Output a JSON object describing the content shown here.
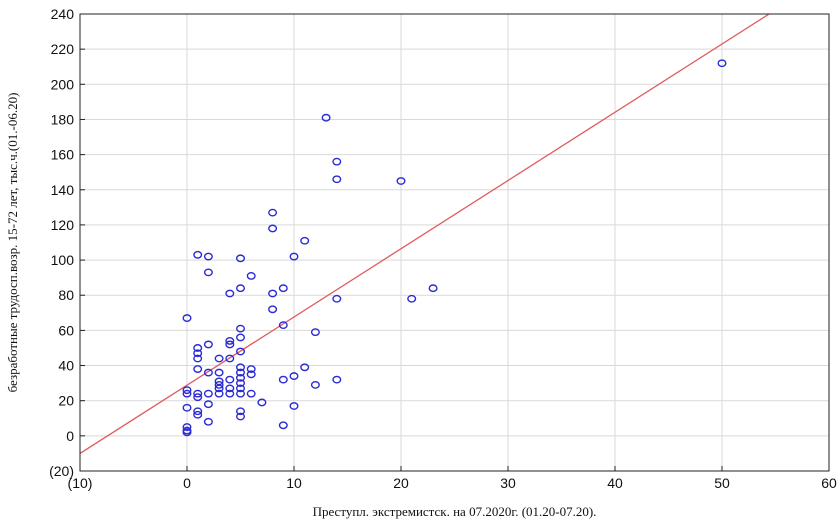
{
  "chart_data": {
    "type": "scatter",
    "xlabel": "Преступл. экстремистск. на 07.2020г. (01.20-07.20).",
    "ylabel": "безработные трудосп.возр. 15-72 лет, тыс.ч.(01.-06.20)",
    "xlim": [
      -10,
      60
    ],
    "ylim": [
      -20,
      240
    ],
    "xticks": [
      -10,
      0,
      10,
      20,
      30,
      40,
      50,
      60
    ],
    "xtick_labels": [
      "(10)",
      "0",
      "10",
      "20",
      "30",
      "40",
      "50",
      "60"
    ],
    "yticks": [
      -20,
      0,
      20,
      40,
      60,
      80,
      100,
      120,
      140,
      160,
      180,
      200,
      220,
      240
    ],
    "ytick_labels": [
      "(20)",
      "0",
      "20",
      "40",
      "60",
      "80",
      "100",
      "120",
      "140",
      "160",
      "180",
      "200",
      "220",
      "240"
    ],
    "grid": true,
    "marker_color": "#2b2bd6",
    "fit_line_color": "#e05a5a",
    "fit_line": {
      "x": [
        -10,
        54.4
      ],
      "y": [
        -10,
        240
      ]
    },
    "points": [
      [
        0,
        2
      ],
      [
        0,
        3
      ],
      [
        0,
        5
      ],
      [
        0,
        16
      ],
      [
        0,
        24
      ],
      [
        0,
        26
      ],
      [
        0,
        67
      ],
      [
        1,
        12
      ],
      [
        1,
        14
      ],
      [
        1,
        22
      ],
      [
        1,
        24
      ],
      [
        1,
        38
      ],
      [
        1,
        44
      ],
      [
        1,
        47
      ],
      [
        1,
        50
      ],
      [
        1,
        103
      ],
      [
        2,
        8
      ],
      [
        2,
        18
      ],
      [
        2,
        24
      ],
      [
        2,
        36
      ],
      [
        2,
        52
      ],
      [
        2,
        93
      ],
      [
        2,
        102
      ],
      [
        3,
        24
      ],
      [
        3,
        27
      ],
      [
        3,
        29
      ],
      [
        3,
        31
      ],
      [
        3,
        36
      ],
      [
        3,
        44
      ],
      [
        4,
        24
      ],
      [
        4,
        27
      ],
      [
        4,
        32
      ],
      [
        4,
        44
      ],
      [
        4,
        52
      ],
      [
        4,
        54
      ],
      [
        4,
        81
      ],
      [
        5,
        11
      ],
      [
        5,
        14
      ],
      [
        5,
        24
      ],
      [
        5,
        27
      ],
      [
        5,
        30
      ],
      [
        5,
        33
      ],
      [
        5,
        36
      ],
      [
        5,
        39
      ],
      [
        5,
        48
      ],
      [
        5,
        56
      ],
      [
        5,
        61
      ],
      [
        5,
        84
      ],
      [
        5,
        101
      ],
      [
        6,
        24
      ],
      [
        6,
        35
      ],
      [
        6,
        38
      ],
      [
        6,
        91
      ],
      [
        7,
        19
      ],
      [
        8,
        72
      ],
      [
        8,
        81
      ],
      [
        8,
        118
      ],
      [
        8,
        127
      ],
      [
        9,
        6
      ],
      [
        9,
        32
      ],
      [
        9,
        63
      ],
      [
        9,
        84
      ],
      [
        10,
        17
      ],
      [
        10,
        34
      ],
      [
        10,
        102
      ],
      [
        11,
        39
      ],
      [
        11,
        111
      ],
      [
        12,
        29
      ],
      [
        12,
        59
      ],
      [
        13,
        181
      ],
      [
        14,
        32
      ],
      [
        14,
        78
      ],
      [
        14,
        146
      ],
      [
        14,
        156
      ],
      [
        20,
        145
      ],
      [
        21,
        78
      ],
      [
        23,
        84
      ],
      [
        50,
        212
      ]
    ]
  }
}
